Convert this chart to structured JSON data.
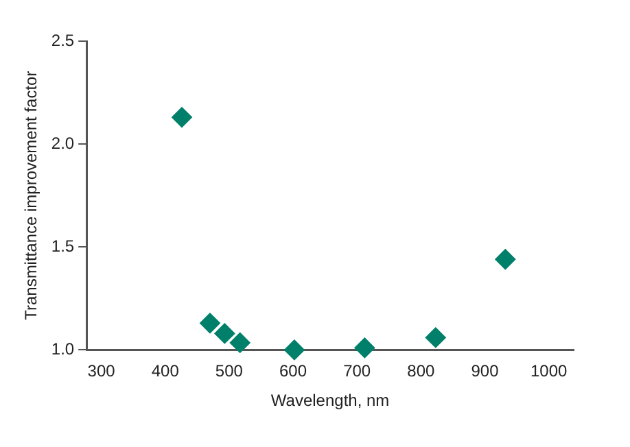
{
  "chart_data": {
    "type": "scatter",
    "xlabel": "Wavelength, nm",
    "ylabel": "Transmittance improvement factor",
    "x": [
      426,
      470,
      493,
      517,
      602,
      712,
      823,
      932
    ],
    "values": [
      2.13,
      1.13,
      1.08,
      1.035,
      1.0,
      1.01,
      1.06,
      1.44
    ],
    "color": "#00806a",
    "marker": "diamond",
    "grid": false,
    "legend": false,
    "xlim": [
      277,
      1039
    ],
    "xticks": [
      300,
      400,
      500,
      600,
      700,
      800,
      900,
      1000
    ],
    "ylim": [
      1.0,
      2.5
    ],
    "yticks": [
      {
        "value": 1.0,
        "label": "1.0"
      },
      {
        "value": 1.5,
        "label": "1.5"
      },
      {
        "value": 2.0,
        "label": "2.0"
      },
      {
        "value": 2.5,
        "label": "2.5"
      }
    ]
  }
}
